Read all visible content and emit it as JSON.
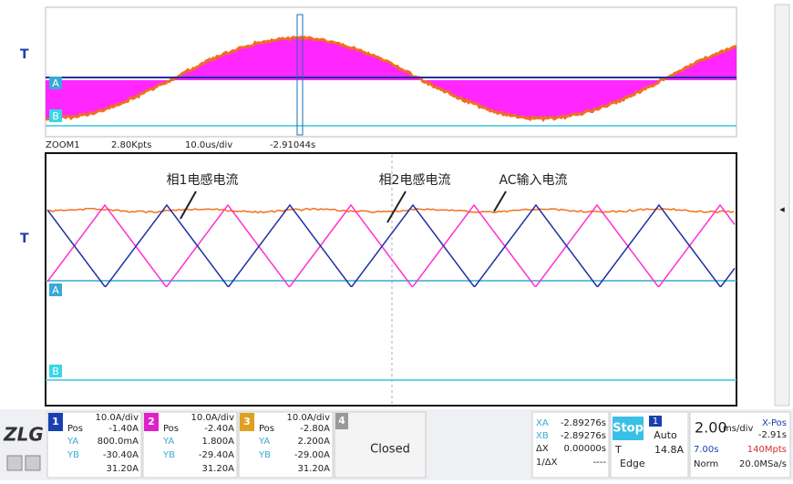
{
  "markers": {
    "trigger": "T",
    "ch_a": "A",
    "ch_b": "B"
  },
  "zoom_bar": [
    "ZOOM1",
    "2.80Kpts",
    "10.0us/div",
    "-2.91044s"
  ],
  "annotations": [
    "相1电感电流",
    "相2电感电流",
    "AC输入电流"
  ],
  "channels": [
    {
      "num": "1",
      "scale": "10.0A/div",
      "pos_label": "Pos",
      "pos": "-1.40A",
      "ya_label": "YA",
      "ya": "800.0mA",
      "yb_label": "YB",
      "yb": "-30.40A",
      "dy": "31.20A"
    },
    {
      "num": "2",
      "scale": "10.0A/div",
      "pos_label": "Pos",
      "pos": "-2.40A",
      "ya_label": "YA",
      "ya": "1.800A",
      "yb_label": "YB",
      "yb": "-29.40A",
      "dy": "31.20A"
    },
    {
      "num": "3",
      "scale": "10.0A/div",
      "pos_label": "Pos",
      "pos": "-2.80A",
      "ya_label": "YA",
      "ya": "2.200A",
      "yb_label": "YB",
      "yb": "-29.00A",
      "dy": "31.20A"
    }
  ],
  "ch4": {
    "num": "4",
    "status": "Closed"
  },
  "cursors": {
    "xa_label": "XA",
    "xa": "-2.89276s",
    "xb_label": "XB",
    "xb": "-2.89276s",
    "dx_label": "ΔX",
    "dx": "0.00000s",
    "inv_label": "1/ΔX",
    "inv": "----"
  },
  "run": {
    "state": "Stop",
    "channel": "1",
    "mode": "Auto",
    "trig_label": "T",
    "trig_level": "14.8A",
    "type": "Edge"
  },
  "timebase": {
    "scale": "2.00",
    "unit": "ms/div",
    "xpos_label": "X-Pos",
    "xpos": "-2.91s",
    "time": "7.00s",
    "pts": "140Mpts",
    "mode": "Norm",
    "rate": "20.0MSa/s"
  }
}
